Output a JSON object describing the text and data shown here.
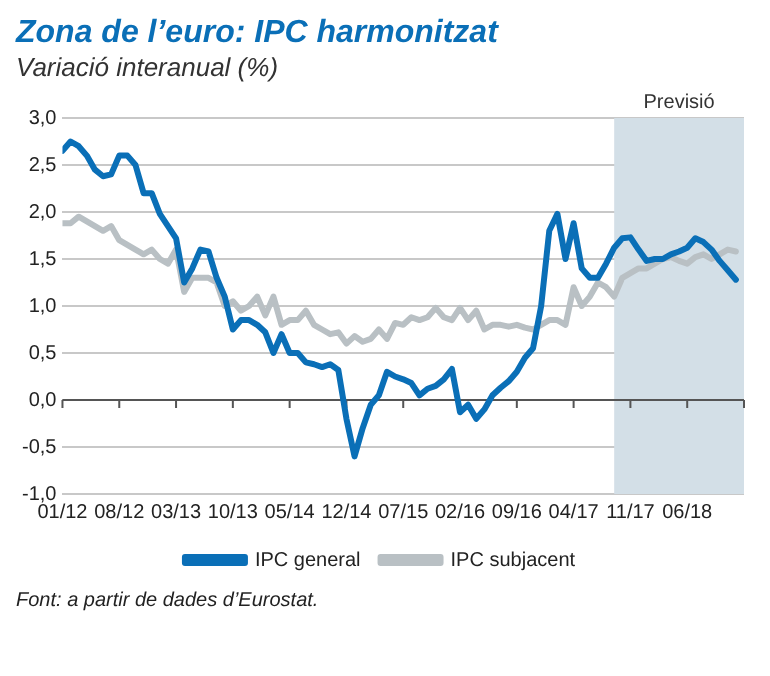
{
  "chart_data": {
    "type": "line",
    "title": "Zona de l’euro: IPC harmonitzat",
    "subtitle": "Variació interanual (%)",
    "x": [
      "2012-01",
      "2012-02",
      "2012-03",
      "2012-04",
      "2012-05",
      "2012-06",
      "2012-07",
      "2012-08",
      "2012-09",
      "2012-10",
      "2012-11",
      "2012-12",
      "2013-01",
      "2013-02",
      "2013-03",
      "2013-04",
      "2013-05",
      "2013-06",
      "2013-07",
      "2013-08",
      "2013-09",
      "2013-10",
      "2013-11",
      "2013-12",
      "2014-01",
      "2014-02",
      "2014-03",
      "2014-04",
      "2014-05",
      "2014-06",
      "2014-07",
      "2014-08",
      "2014-09",
      "2014-10",
      "2014-11",
      "2014-12",
      "2015-01",
      "2015-02",
      "2015-03",
      "2015-04",
      "2015-05",
      "2015-06",
      "2015-07",
      "2015-08",
      "2015-09",
      "2015-10",
      "2015-11",
      "2015-12",
      "2016-01",
      "2016-02",
      "2016-03",
      "2016-04",
      "2016-05",
      "2016-06",
      "2016-07",
      "2016-08",
      "2016-09",
      "2016-10",
      "2016-11",
      "2016-12",
      "2017-01",
      "2017-02",
      "2017-03",
      "2017-04",
      "2017-05",
      "2017-06",
      "2017-07",
      "2017-08",
      "2017-09",
      "2017-10",
      "2017-11",
      "2017-12",
      "2018-01",
      "2018-02",
      "2018-03",
      "2018-04",
      "2018-05",
      "2018-06",
      "2018-07",
      "2018-08",
      "2018-09",
      "2018-10",
      "2018-11",
      "2018-12"
    ],
    "series": [
      {
        "name": "IPC general",
        "color": "#0a6fb7",
        "values": [
          2.65,
          2.75,
          2.7,
          2.6,
          2.45,
          2.38,
          2.4,
          2.6,
          2.6,
          2.5,
          2.2,
          2.2,
          1.98,
          1.85,
          1.72,
          1.25,
          1.4,
          1.6,
          1.58,
          1.3,
          1.1,
          0.75,
          0.85,
          0.85,
          0.8,
          0.72,
          0.5,
          0.7,
          0.5,
          0.5,
          0.4,
          0.38,
          0.35,
          0.38,
          0.32,
          -0.2,
          -0.6,
          -0.3,
          -0.05,
          0.05,
          0.3,
          0.25,
          0.22,
          0.18,
          0.05,
          0.12,
          0.15,
          0.22,
          0.33,
          -0.13,
          -0.05,
          -0.2,
          -0.1,
          0.05,
          0.13,
          0.2,
          0.3,
          0.45,
          0.55,
          1.0,
          1.8,
          1.98,
          1.5,
          1.88,
          1.4,
          1.3,
          1.3,
          1.45,
          1.62,
          1.72,
          1.73,
          1.6,
          1.48,
          1.5,
          1.5,
          1.55,
          1.58,
          1.62,
          1.72,
          1.68,
          1.6,
          1.48,
          1.38,
          1.28
        ]
      },
      {
        "name": "IPC subjacent",
        "color": "#b9c0c4",
        "values": [
          1.88,
          1.88,
          1.95,
          1.9,
          1.85,
          1.8,
          1.85,
          1.7,
          1.65,
          1.6,
          1.55,
          1.6,
          1.5,
          1.45,
          1.6,
          1.15,
          1.3,
          1.3,
          1.3,
          1.25,
          1.0,
          1.05,
          0.95,
          1.0,
          1.1,
          0.9,
          1.1,
          0.8,
          0.85,
          0.85,
          0.95,
          0.8,
          0.75,
          0.7,
          0.72,
          0.6,
          0.68,
          0.62,
          0.65,
          0.75,
          0.65,
          0.82,
          0.8,
          0.88,
          0.85,
          0.88,
          0.98,
          0.88,
          0.85,
          0.98,
          0.85,
          0.95,
          0.75,
          0.8,
          0.8,
          0.78,
          0.8,
          0.77,
          0.75,
          0.8,
          0.85,
          0.85,
          0.8,
          1.2,
          1.0,
          1.1,
          1.25,
          1.2,
          1.1,
          1.3,
          1.35,
          1.4,
          1.4,
          1.45,
          1.5,
          1.52,
          1.48,
          1.45,
          1.52,
          1.55,
          1.5,
          1.55,
          1.6,
          1.58
        ]
      }
    ],
    "xlim": [
      "2012-01",
      "2019-01"
    ],
    "xticks": [
      {
        "value": "2012-01",
        "label": "01/12"
      },
      {
        "value": "2012-08",
        "label": "08/12"
      },
      {
        "value": "2013-03",
        "label": "03/13"
      },
      {
        "value": "2013-10",
        "label": "10/13"
      },
      {
        "value": "2014-05",
        "label": "05/14"
      },
      {
        "value": "2014-12",
        "label": "12/14"
      },
      {
        "value": "2015-07",
        "label": "07/15"
      },
      {
        "value": "2016-02",
        "label": "02/16"
      },
      {
        "value": "2016-09",
        "label": "09/16"
      },
      {
        "value": "2017-04",
        "label": "04/17"
      },
      {
        "value": "2017-11",
        "label": "11/17"
      },
      {
        "value": "2018-06",
        "label": "06/18"
      },
      {
        "value": "2019-01",
        "label": null
      }
    ],
    "ylim": [
      -1,
      3
    ],
    "yticks": [
      {
        "value": -1,
        "label": "-1,0"
      },
      {
        "value": -0.5,
        "label": "-0,5"
      },
      {
        "value": 0,
        "label": "0,0"
      },
      {
        "value": 0.5,
        "label": "0,5"
      },
      {
        "value": 1,
        "label": "1,0"
      },
      {
        "value": 1.5,
        "label": "1,5"
      },
      {
        "value": 2,
        "label": "2,0"
      },
      {
        "value": 2.5,
        "label": "2,5"
      },
      {
        "value": 3,
        "label": "3,0"
      }
    ],
    "bands": [
      {
        "axis": "x",
        "from": "2017-09",
        "to": "2019-01",
        "label": "Previsió",
        "color": "#d3dfe7"
      }
    ],
    "grid": "y",
    "legend": "bottom",
    "marker": "none",
    "line_style": "solid",
    "annotations": [
      "Font: a partir de dades d’Eurostat."
    ]
  }
}
